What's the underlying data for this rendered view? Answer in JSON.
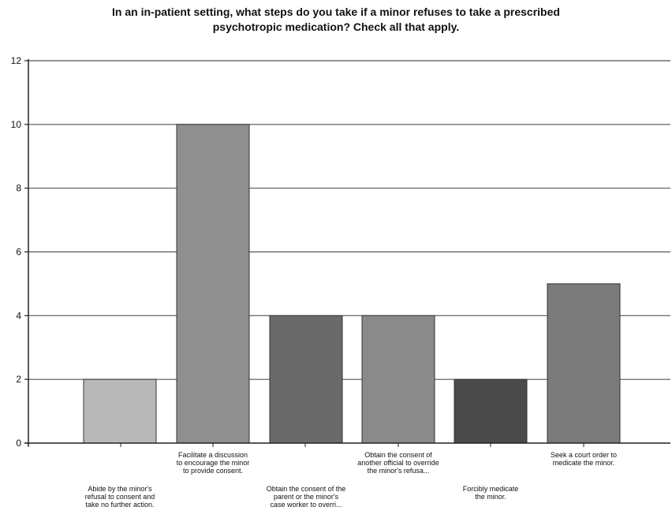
{
  "chart_data": {
    "type": "bar",
    "title_lines": [
      "In an in-patient setting, what steps do you take if a minor refuses to take a prescribed",
      "psychotropic medication? Check all that apply."
    ],
    "categories": [
      [
        "Abide by the minor's",
        "refusal to consent and",
        "take no further action."
      ],
      [
        "Facilitate a discussion",
        "to encourage the minor",
        "to provide consent."
      ],
      [
        "Obtain the consent of the",
        "parent or the minor's",
        "case worker to overri..."
      ],
      [
        "Obtain the consent of",
        "another official to override",
        "the minor's refusa..."
      ],
      [
        "Forcibly medicate",
        "the minor."
      ],
      [
        "Seek a court order to",
        "medicate the minor."
      ]
    ],
    "values": [
      2,
      10,
      4,
      4,
      2,
      5
    ],
    "bar_colors": [
      "#b8b8b8",
      "#8f8f8f",
      "#6a6a6a",
      "#8a8a8a",
      "#4a4a4a",
      "#7a7a7a"
    ],
    "ylim": [
      0,
      12
    ],
    "yticks": [
      0,
      2,
      4,
      6,
      8,
      10,
      12
    ],
    "grid": true,
    "xlabel": "",
    "ylabel": ""
  }
}
